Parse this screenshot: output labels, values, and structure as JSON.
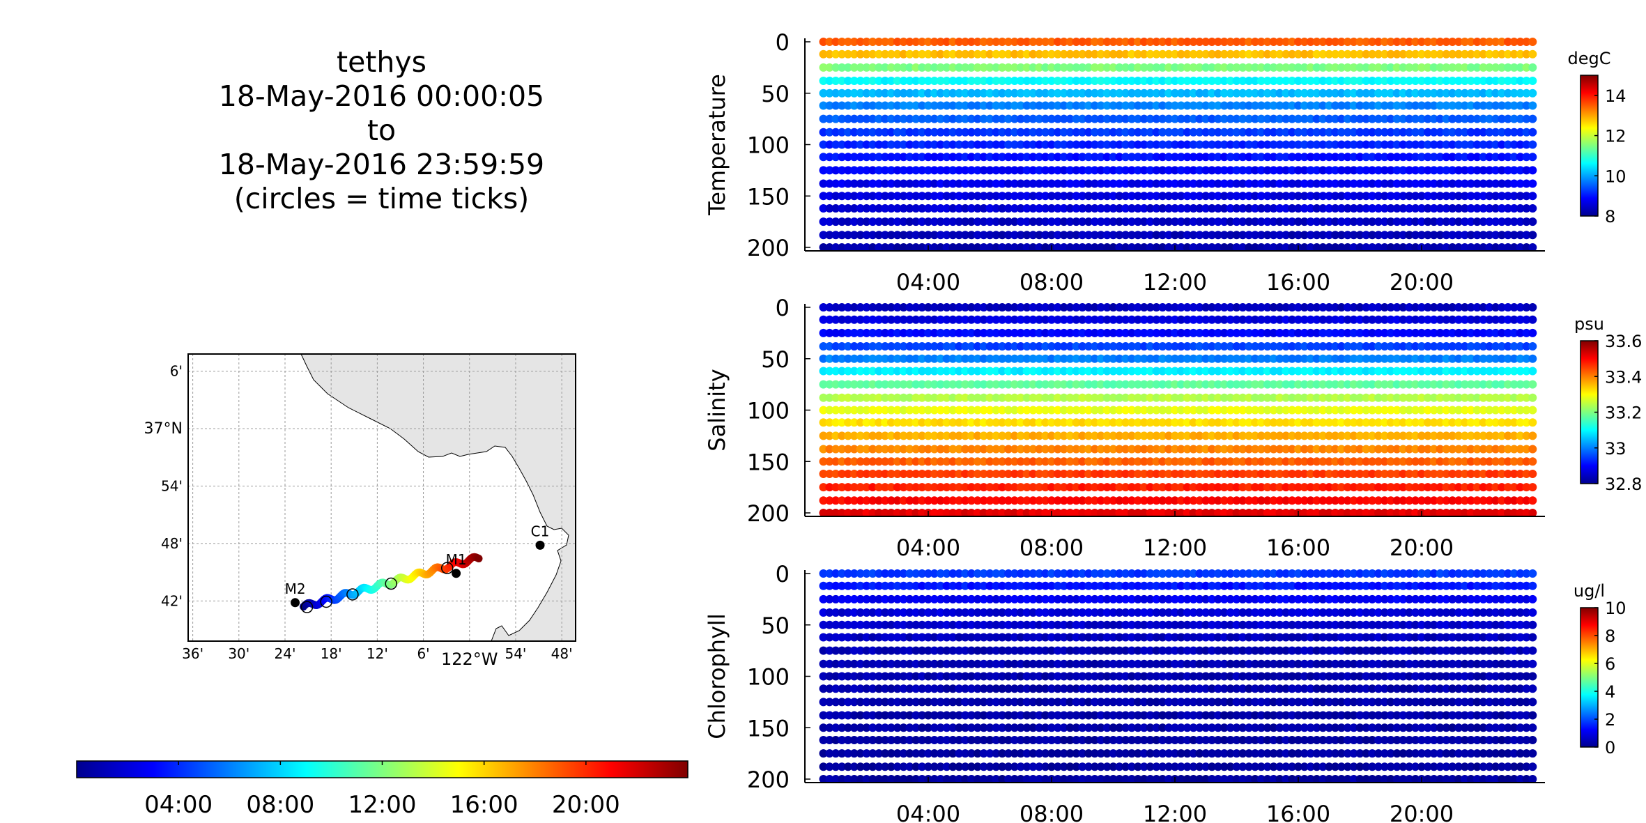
{
  "header": {
    "lines": [
      "tethys",
      "18-May-2016 00:00:05",
      "to",
      "18-May-2016 23:59:59",
      "(circles = time ticks)"
    ]
  },
  "map": {
    "lat_ticks": [
      "6'",
      "37°N",
      "54'",
      "48'",
      "42'"
    ],
    "lon_ticks": [
      "36'",
      "30'",
      "24'",
      "18'",
      "12'",
      "6'",
      "122°W",
      "54'",
      "48'"
    ],
    "stations": [
      {
        "name": "M2",
        "lon": -122.378,
        "lat": 36.697
      },
      {
        "name": "M1",
        "lon": -122.029,
        "lat": 36.748
      },
      {
        "name": "C1",
        "lon": -121.847,
        "lat": 36.797
      }
    ],
    "track": {
      "start": [
        -122.36,
        36.69
      ],
      "end": [
        -121.98,
        36.775
      ]
    },
    "land_color": "#e5e5e5"
  },
  "time_colorbar": {
    "ticks": [
      "04:00",
      "08:00",
      "12:00",
      "16:00",
      "20:00"
    ]
  },
  "chart_data": [
    {
      "type": "scatter",
      "ylabel": "Temperature",
      "units": "degC",
      "x_ticks": [
        "04:00",
        "08:00",
        "12:00",
        "16:00",
        "20:00"
      ],
      "y_ticks": [
        0,
        50,
        100,
        150,
        200
      ],
      "ylim": [
        200,
        0
      ],
      "clim": [
        8,
        15
      ],
      "cbar_ticks": [
        "8",
        "10",
        "12",
        "14"
      ],
      "profile": [
        [
          0,
          13.5
        ],
        [
          10,
          13
        ],
        [
          25,
          11.5
        ],
        [
          40,
          10.5
        ],
        [
          60,
          9.8
        ],
        [
          90,
          9.2
        ],
        [
          130,
          8.8
        ],
        [
          200,
          8.3
        ]
      ]
    },
    {
      "type": "scatter",
      "ylabel": "Salinity",
      "units": "psu",
      "x_ticks": [
        "04:00",
        "08:00",
        "12:00",
        "16:00",
        "20:00"
      ],
      "y_ticks": [
        0,
        50,
        100,
        150,
        200
      ],
      "ylim": [
        200,
        0
      ],
      "clim": [
        32.8,
        33.6
      ],
      "cbar_ticks": [
        "32.8",
        "33",
        "33.2",
        "33.4",
        "33.6"
      ],
      "profile": [
        [
          0,
          32.85
        ],
        [
          25,
          32.9
        ],
        [
          50,
          33.0
        ],
        [
          70,
          33.15
        ],
        [
          90,
          33.25
        ],
        [
          120,
          33.35
        ],
        [
          160,
          33.45
        ],
        [
          200,
          33.52
        ]
      ]
    },
    {
      "type": "scatter",
      "ylabel": "Chlorophyll",
      "units": "ug/l",
      "x_ticks": [
        "04:00",
        "08:00",
        "12:00",
        "16:00",
        "20:00"
      ],
      "y_ticks": [
        0,
        50,
        100,
        150,
        200
      ],
      "ylim": [
        200,
        0
      ],
      "clim": [
        0,
        10
      ],
      "cbar_ticks": [
        "0",
        "2",
        "4",
        "6",
        "8",
        "10"
      ],
      "profile": [
        [
          0,
          1.8
        ],
        [
          20,
          1.2
        ],
        [
          40,
          0.8
        ],
        [
          80,
          0.5
        ],
        [
          200,
          0.3
        ]
      ]
    }
  ]
}
